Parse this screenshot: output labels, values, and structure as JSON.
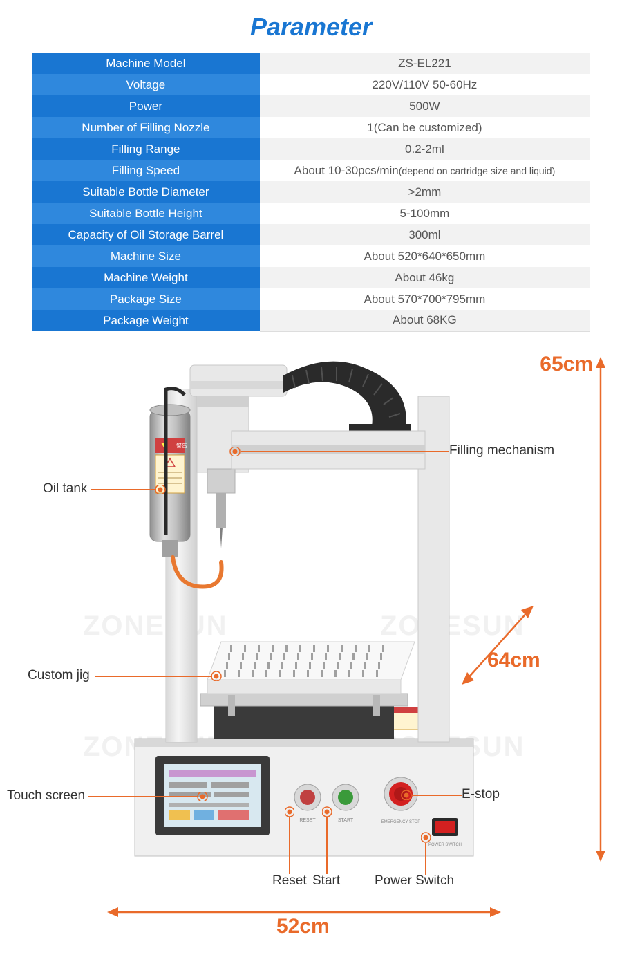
{
  "title": "Parameter",
  "title_color": "#1976d2",
  "table": {
    "label_bg_header": "#1976d2",
    "label_bg_alt": "#2f88dd",
    "value_bg_a": "#f2f2f2",
    "value_bg_b": "#ffffff",
    "border_color": "#dddddd",
    "rows": [
      {
        "label": "Machine Model",
        "value": "ZS-EL221"
      },
      {
        "label": "Voltage",
        "value": "220V/110V 50-60Hz"
      },
      {
        "label": "Power",
        "value": "500W"
      },
      {
        "label": "Number of Filling Nozzle",
        "value": "1(Can be customized)"
      },
      {
        "label": "Filling Range",
        "value": "0.2-2ml"
      },
      {
        "label": "Filling Speed",
        "value": "About 10-30pcs/min",
        "note": "(depend on cartridge size and liquid)"
      },
      {
        "label": "Suitable Bottle Diameter",
        "value": ">2mm"
      },
      {
        "label": "Suitable Bottle Height",
        "value": "5-100mm"
      },
      {
        "label": "Capacity of Oil Storage Barrel",
        "value": "300ml"
      },
      {
        "label": "Machine Size",
        "value": "About 520*640*650mm"
      },
      {
        "label": "Machine Weight",
        "value": "About 46kg"
      },
      {
        "label": "Package Size",
        "value": "About 570*700*795mm"
      },
      {
        "label": "Package Weight",
        "value": "About 68KG"
      }
    ]
  },
  "dimensions": {
    "height": "65cm",
    "depth": "64cm",
    "width": "52cm",
    "color": "#e96a2a"
  },
  "callouts": {
    "oil_tank": "Oil tank",
    "filling_mechanism": "Filling mechanism",
    "custom_jig": "Custom jig",
    "touch_screen": "Touch screen",
    "e_stop": "E-stop",
    "reset": "Reset",
    "start": "Start",
    "power_switch": "Power Switch"
  },
  "watermark": "ZONESUN",
  "machine_colors": {
    "frame": "#e8e8e8",
    "frame_light": "#f5f5f5",
    "frame_dark": "#c8c8c8",
    "metal": "#b8b8b8",
    "metal_dark": "#888888",
    "cable_chain": "#2a2a2a",
    "estop": "#d32020",
    "button_green": "#3a9a3a",
    "button_red": "#c04040",
    "rocker": "#d32020",
    "screen_frame": "#3a3a3a",
    "screen_bg": "#d8e8f0",
    "tray": "#f8f8f8",
    "warning_bg": "#fff4d0",
    "warning_border": "#d04040",
    "cable_orange": "#e87830"
  }
}
